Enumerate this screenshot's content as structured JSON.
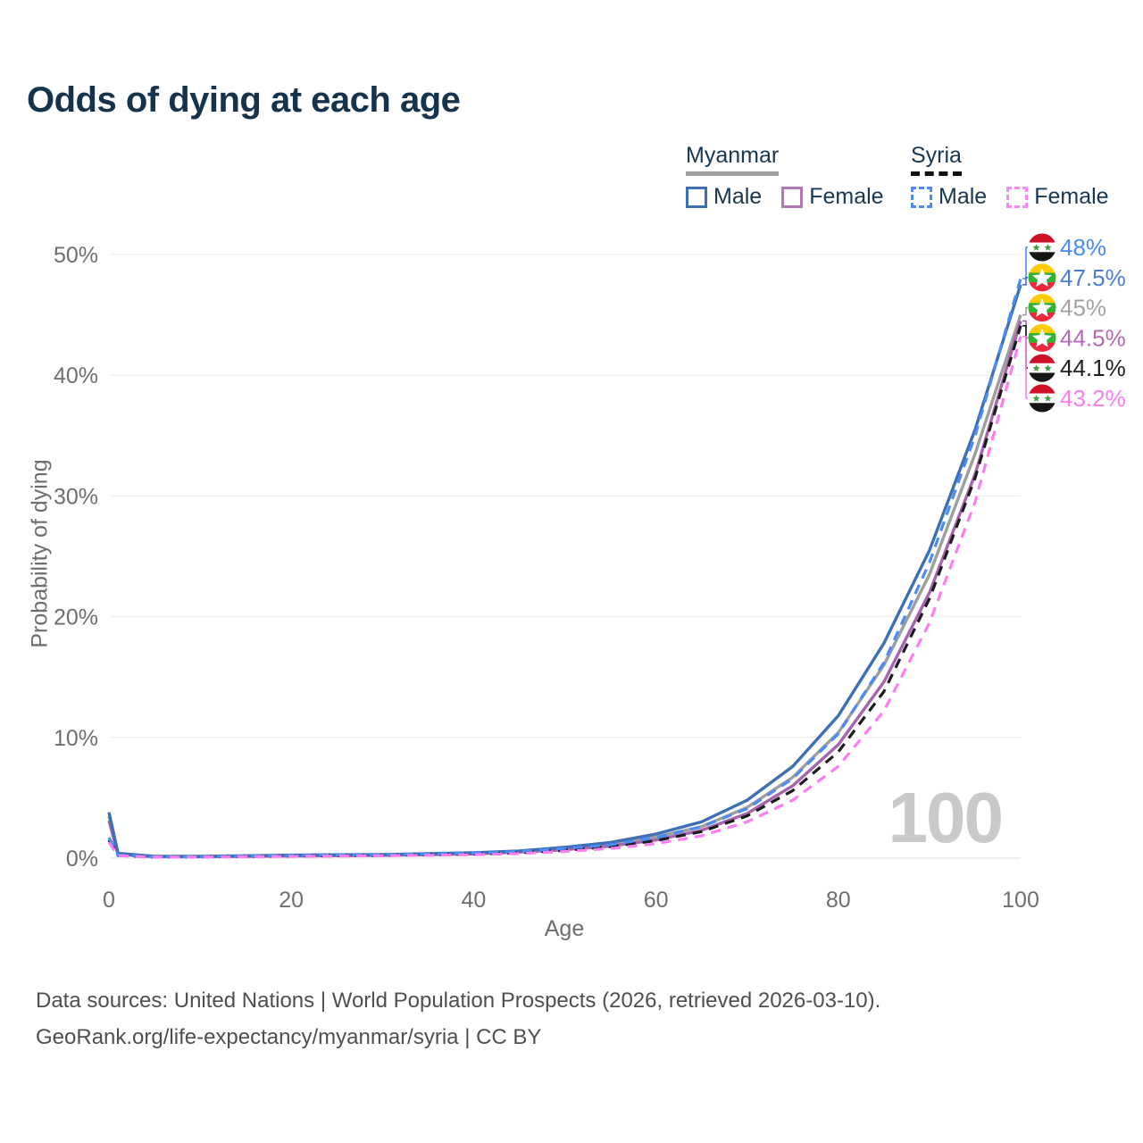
{
  "title": "Odds of dying at each age",
  "legend": {
    "groups": [
      {
        "label": "Myanmar",
        "underline_style": "solid",
        "underline_color": "#9e9e9e",
        "items": [
          {
            "label": "Male",
            "color": "#3d6fb6",
            "dashed": false
          },
          {
            "label": "Female",
            "color": "#b077b6",
            "dashed": false
          }
        ]
      },
      {
        "label": "Syria",
        "underline_style": "dashed",
        "underline_color": "#111111",
        "items": [
          {
            "label": "Male",
            "color": "#4b8bf5",
            "dashed": true
          },
          {
            "label": "Female",
            "color": "#fc86f2",
            "dashed": true
          }
        ]
      }
    ]
  },
  "chart_data": {
    "type": "line",
    "title": "Odds of dying at each age",
    "xlabel": "Age",
    "ylabel": "Probability of dying",
    "xlim": [
      0,
      100
    ],
    "ylim": [
      0,
      52
    ],
    "age_counter": "100",
    "grid": true,
    "x_ticks": [
      {
        "v": 0,
        "label": "0"
      },
      {
        "v": 20,
        "label": "20"
      },
      {
        "v": 40,
        "label": "40"
      },
      {
        "v": 60,
        "label": "60"
      },
      {
        "v": 80,
        "label": "80"
      },
      {
        "v": 100,
        "label": "100"
      }
    ],
    "y_ticks": [
      {
        "v": 0,
        "label": "0%"
      },
      {
        "v": 10,
        "label": "10%"
      },
      {
        "v": 20,
        "label": "20%"
      },
      {
        "v": 30,
        "label": "30%"
      },
      {
        "v": 40,
        "label": "40%"
      },
      {
        "v": 50,
        "label": "50%"
      }
    ],
    "x": [
      0,
      1,
      5,
      10,
      15,
      20,
      25,
      30,
      35,
      40,
      45,
      50,
      55,
      60,
      65,
      70,
      75,
      80,
      85,
      90,
      95,
      100
    ],
    "series": [
      {
        "name": "myanmar-male",
        "country": "Myanmar",
        "sex": "Male",
        "color": "#3d6fb6",
        "dashed": false,
        "flag": "myanmar",
        "end_label": {
          "text": "47.5%",
          "color": "#4a7dd0"
        },
        "values": [
          3.8,
          0.4,
          0.15,
          0.15,
          0.2,
          0.25,
          0.28,
          0.3,
          0.37,
          0.45,
          0.6,
          0.9,
          1.3,
          2.0,
          3.0,
          4.8,
          7.6,
          11.8,
          17.8,
          25.5,
          35.5,
          47.5
        ]
      },
      {
        "name": "myanmar-both",
        "country": "Myanmar",
        "sex": "Both",
        "color": "#9e9e9e",
        "dashed": false,
        "flag": "myanmar",
        "end_label": {
          "text": "45%",
          "color": "#a3a3a3"
        },
        "values": [
          3.5,
          0.35,
          0.13,
          0.13,
          0.17,
          0.21,
          0.24,
          0.27,
          0.33,
          0.4,
          0.55,
          0.8,
          1.15,
          1.75,
          2.6,
          4.2,
          6.7,
          10.4,
          16.0,
          23.5,
          33.5,
          45.0
        ]
      },
      {
        "name": "myanmar-female",
        "country": "Myanmar",
        "sex": "Female",
        "color": "#a763ad",
        "dashed": false,
        "flag": "myanmar",
        "end_label": {
          "text": "44.5%",
          "color": "#b36ab3"
        },
        "values": [
          3.1,
          0.3,
          0.12,
          0.12,
          0.15,
          0.18,
          0.2,
          0.23,
          0.28,
          0.35,
          0.5,
          0.7,
          1.0,
          1.5,
          2.3,
          3.7,
          6.0,
          9.4,
          14.6,
          22.0,
          31.8,
          44.5
        ]
      },
      {
        "name": "syria-male",
        "country": "Syria",
        "sex": "Male",
        "color": "#4b8bf5",
        "dashed": true,
        "flag": "syria",
        "end_label": {
          "text": "48%",
          "color": "#4b8bf5"
        },
        "values": [
          1.7,
          0.25,
          0.1,
          0.12,
          0.17,
          0.22,
          0.25,
          0.28,
          0.33,
          0.4,
          0.55,
          0.8,
          1.1,
          1.7,
          2.6,
          4.1,
          6.6,
          10.3,
          16.2,
          24.5,
          35.0,
          48.0
        ]
      },
      {
        "name": "syria-both",
        "country": "Syria",
        "sex": "Both",
        "color": "#1c1c1c",
        "dashed": true,
        "flag": "syria",
        "end_label": {
          "text": "44.1%",
          "color": "#1f1f1f"
        },
        "values": [
          1.5,
          0.22,
          0.09,
          0.1,
          0.14,
          0.18,
          0.21,
          0.23,
          0.28,
          0.33,
          0.45,
          0.65,
          0.95,
          1.45,
          2.2,
          3.5,
          5.6,
          8.8,
          13.8,
          21.5,
          31.5,
          44.1
        ]
      },
      {
        "name": "syria-female",
        "country": "Syria",
        "sex": "Female",
        "color": "#fb7df1",
        "dashed": true,
        "flag": "syria",
        "end_label": {
          "text": "43.2%",
          "color": "#fb7df1"
        },
        "values": [
          1.3,
          0.2,
          0.08,
          0.09,
          0.12,
          0.15,
          0.17,
          0.2,
          0.24,
          0.28,
          0.38,
          0.55,
          0.8,
          1.2,
          1.85,
          3.0,
          4.8,
          7.6,
          12.2,
          19.5,
          29.5,
          43.2
        ]
      }
    ],
    "flag_colors": {
      "myanmar": {
        "top": "#FECB00",
        "mid": "#34B233",
        "bottom": "#EA2839",
        "star": "#ffffff"
      },
      "syria": {
        "top": "#CE1126",
        "mid": "#ffffff",
        "bottom": "#151515",
        "star": "#3f9d3f"
      }
    }
  },
  "footer": {
    "line1": "Data sources: United Nations | World Population Prospects (2026, retrieved 2026-03-10).",
    "line2": "GeoRank.org/life-expectancy/myanmar/syria | CC BY"
  }
}
